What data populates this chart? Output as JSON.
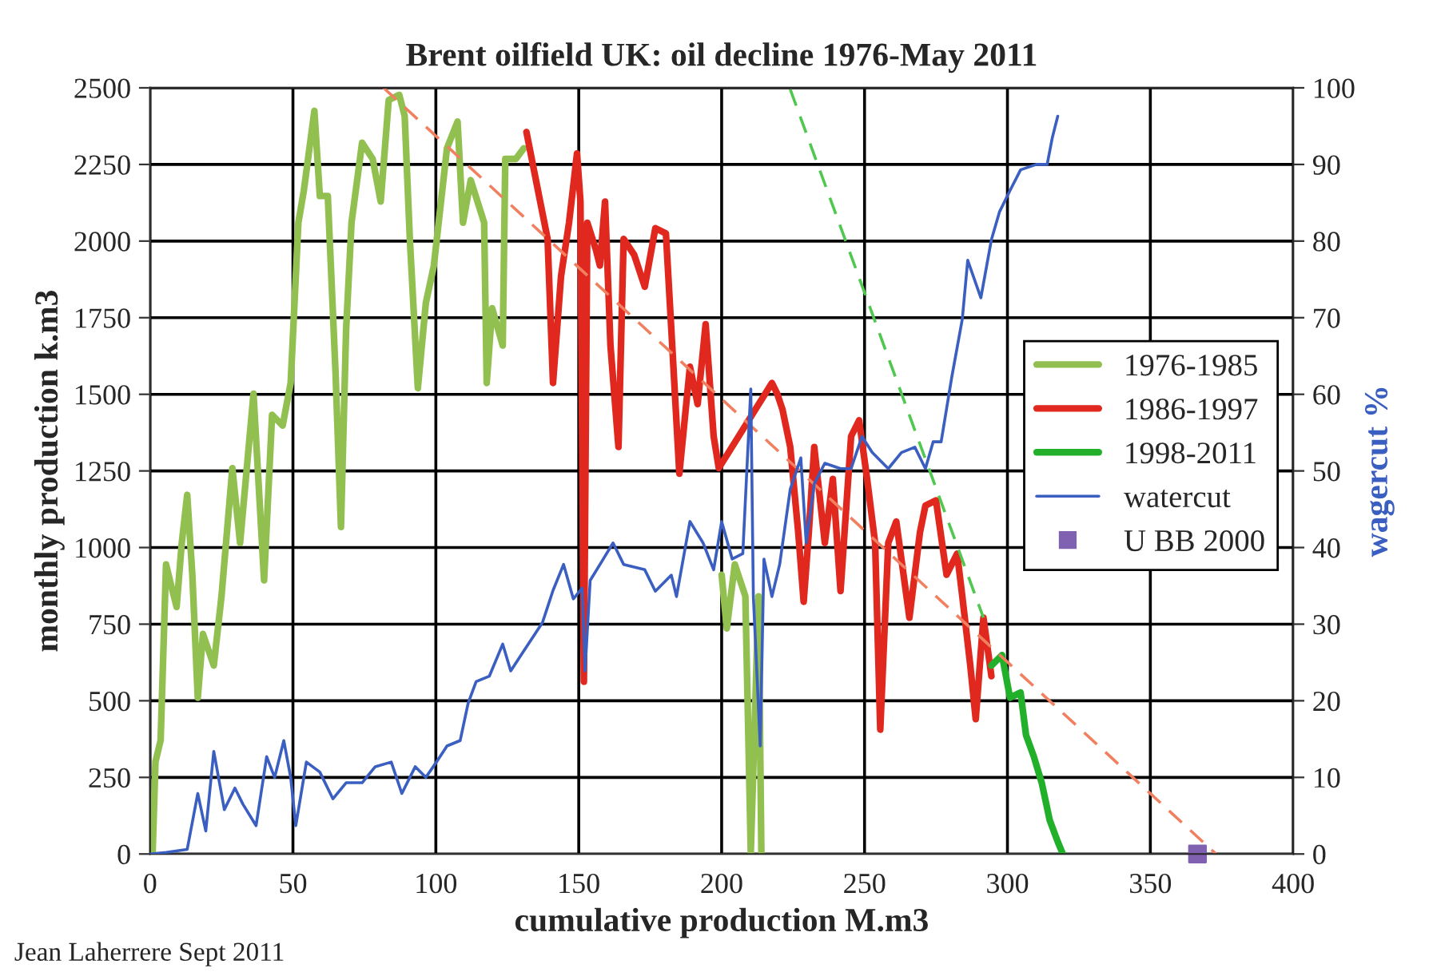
{
  "chart_data": {
    "type": "line",
    "title": "Brent oilfield UK: oil decline 1976-May 2011",
    "xlabel": "cumulative production M.m3",
    "ylabel": "monthly production k.m3",
    "y2label": "wagercut %",
    "annotations": [
      "Jean Laherrere Sept 2011"
    ],
    "xlim": [
      0,
      400
    ],
    "xticks": [
      0,
      50,
      100,
      150,
      200,
      250,
      300,
      350,
      400
    ],
    "ylim": [
      0,
      2500
    ],
    "yticks": [
      0,
      250,
      500,
      750,
      1000,
      1250,
      1500,
      1750,
      2000,
      2250,
      2500
    ],
    "y2lim": [
      0,
      100
    ],
    "y2ticks": [
      0,
      10,
      20,
      30,
      40,
      50,
      60,
      70,
      80,
      90,
      100
    ],
    "grid": true,
    "legend": "right",
    "series": [
      {
        "name": "1976-1985",
        "color": "#92c050",
        "x": [
          0.9,
          1.9,
          3.7,
          5.6,
          7.4,
          9.3,
          11.1,
          13,
          14.8,
          16.7,
          18.5,
          22.3,
          25,
          28.8,
          31.5,
          36.2,
          39.9,
          42.7,
          46.4,
          49.2,
          51.9,
          53.8,
          57.5,
          59.4,
          62.2,
          64.9,
          66.8,
          68.6,
          70.5,
          74.2,
          77.9,
          80.7,
          83.5,
          87.2,
          89.1,
          90.9,
          93.7,
          96.5,
          99.3,
          103.9,
          107.6,
          109.5,
          112.2,
          116.9,
          117.8,
          119.7,
          123.4,
          124.3,
          128,
          130.8,
          165,
          200,
          201.8,
          204.6,
          208.3,
          210.2,
          212.9,
          213.9
        ],
        "values": [
          5,
          301,
          371,
          945,
          876,
          806,
          1015,
          1172,
          910,
          510,
          718,
          615,
          841,
          1259,
          1015,
          1502,
          893,
          1433,
          1398,
          1537,
          2060,
          2164,
          2425,
          2147,
          2147,
          1572,
          1067,
          1711,
          2060,
          2321,
          2268,
          2129,
          2460,
          2477,
          2408,
          2007,
          1520,
          1798,
          1920,
          2303,
          2390,
          2060,
          2199,
          2060,
          1537,
          1781,
          1659,
          2268,
          2268,
          2303,
          null,
          911,
          736,
          945,
          841,
          5,
          841,
          5
        ]
      },
      {
        "name": "1986-1997",
        "color": "#e0281e",
        "x": [
          131.7,
          135.4,
          139.1,
          141,
          143.8,
          146.6,
          149.4,
          150.6,
          151.8,
          153,
          156,
          157.4,
          159.2,
          161.1,
          163.9,
          165.7,
          169.4,
          173.1,
          176.8,
          180.5,
          182.4,
          185.2,
          188.9,
          191.6,
          194.4,
          197.2,
          199,
          217.6,
          219.4,
          221.3,
          224,
          226.8,
          228.7,
          230.5,
          232.4,
          236.1,
          238.9,
          241.6,
          245.3,
          248.1,
          250.9,
          253.7,
          255.5,
          258.3,
          261.1,
          265.7,
          269.4,
          271.3,
          275,
          278.7,
          282.4,
          284.2,
          287,
          288.9,
          291.6,
          294.4
        ],
        "values": [
          2356,
          2181,
          2007,
          1537,
          1885,
          2060,
          2286,
          2129,
          562,
          2060,
          1972,
          1920,
          2129,
          1659,
          1328,
          2007,
          1955,
          1851,
          2042,
          2025,
          1711,
          1241,
          1590,
          1468,
          1729,
          1363,
          1259,
          1537,
          1503,
          1450,
          1328,
          1050,
          823,
          1050,
          1328,
          1015,
          1224,
          858,
          1363,
          1415,
          1224,
          1015,
          406,
          1015,
          1085,
          771,
          1050,
          1137,
          1154,
          911,
          980,
          841,
          615,
          440,
          771,
          580
        ]
      },
      {
        "name": "1998-2011",
        "color": "#22b02a",
        "x": [
          294.4,
          298.1,
          300.9,
          304.6,
          306.5,
          309.2,
          312,
          314.8,
          317.6,
          319.4
        ],
        "values": [
          615,
          649,
          510,
          527,
          388,
          319,
          232,
          110,
          40,
          0
        ]
      },
      {
        "name": "watercut",
        "color": "#3a5fc0",
        "axis": "y2",
        "x": [
          0,
          5.6,
          13,
          16.7,
          19.5,
          22.3,
          26,
          29.7,
          32.5,
          37.1,
          40.8,
          43.6,
          46.8,
          49.2,
          51,
          54.7,
          59.4,
          64,
          68.6,
          74.2,
          78.8,
          84.4,
          88.1,
          92.8,
          96.5,
          100.2,
          103.9,
          108.5,
          111.3,
          114.1,
          118.7,
          123.4,
          126.2,
          129.9,
          137.3,
          141,
          144.7,
          148.1,
          151.2,
          152.2,
          154,
          158.6,
          162,
          165.7,
          173.1,
          176.8,
          182.4,
          184.2,
          188.9,
          193.5,
          197.2,
          200,
          203.7,
          207.4,
          210.2,
          211.1,
          213.5,
          214.8,
          217.6,
          220.3,
          224,
          227.7,
          229.6,
          232.4,
          236.1,
          241.6,
          245.3,
          249.1,
          252.7,
          258.3,
          262.9,
          267.6,
          271.3,
          274,
          276.8,
          280.5,
          284.2,
          286.1,
          290.7,
          294.4,
          297.2,
          300.9,
          304.6,
          310.1,
          313.9,
          315.7,
          317.6
        ],
        "values": [
          0,
          0.2,
          0.6,
          7.9,
          3,
          13.4,
          5.8,
          8.6,
          6.5,
          3.7,
          12.7,
          10,
          14.8,
          10,
          3.7,
          12,
          10.7,
          7.2,
          9.3,
          9.3,
          11.4,
          12,
          7.9,
          11.4,
          10,
          12,
          14.1,
          14.8,
          19.7,
          22.5,
          23.2,
          27.4,
          23.9,
          26,
          30.2,
          34.4,
          37.8,
          33.3,
          34.7,
          23.9,
          35.7,
          38.5,
          40.6,
          37.8,
          37.1,
          34.3,
          36.4,
          33.6,
          43.4,
          40.6,
          37.1,
          43.4,
          38.5,
          39.2,
          60.7,
          33.6,
          14.1,
          38.5,
          33.6,
          37.8,
          47.6,
          51.7,
          40.6,
          48.3,
          51,
          50.3,
          50.3,
          54.5,
          52.4,
          50.3,
          52.4,
          53.1,
          50.3,
          53.8,
          53.8,
          62.2,
          69.8,
          77.5,
          72.6,
          80.2,
          83.8,
          86.6,
          89.3,
          90,
          90,
          93.5,
          96.3
        ]
      },
      {
        "name": "U BB 2000",
        "type": "scatter",
        "marker": "square",
        "color": "#8060b0",
        "x": [
          366.5
        ],
        "values": [
          0
        ]
      },
      {
        "type": "line",
        "line_style": "dashed",
        "color": "#f08060",
        "x": [
          81.7,
          373
        ],
        "values": [
          2500,
          0
        ]
      },
      {
        "type": "line",
        "line_style": "dashed",
        "color": "#50c850",
        "x": [
          224,
          291.6
        ],
        "values": [
          2495,
          771
        ]
      }
    ]
  }
}
